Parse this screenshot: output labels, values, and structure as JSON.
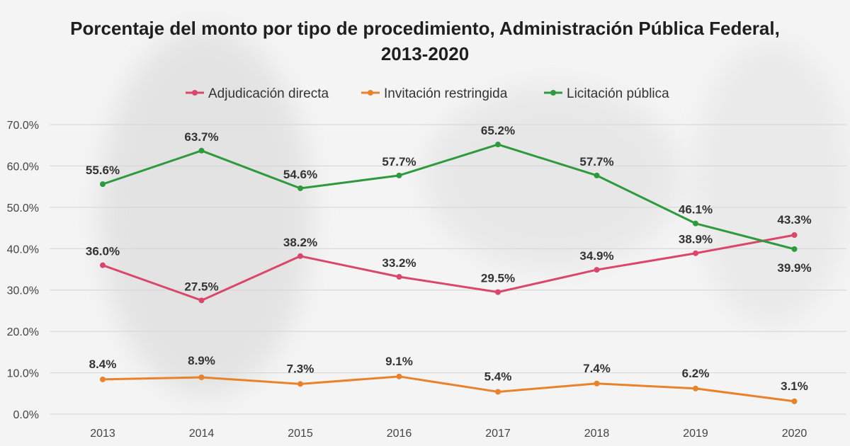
{
  "chart_data": {
    "type": "line",
    "title_lines": [
      "Porcentaje del monto por tipo de procedimiento, Administración Pública Federal,",
      "2013-2020"
    ],
    "categories": [
      "2013",
      "2014",
      "2015",
      "2016",
      "2017",
      "2018",
      "2019",
      "2020"
    ],
    "series": [
      {
        "name": "Adjudicación directa",
        "color": "#d9476b",
        "values": [
          36.0,
          27.5,
          38.2,
          33.2,
          29.5,
          34.9,
          38.9,
          43.3
        ]
      },
      {
        "name": "Invitación restringida",
        "color": "#e8822b",
        "values": [
          8.4,
          8.9,
          7.3,
          9.1,
          5.4,
          7.4,
          6.2,
          3.1
        ]
      },
      {
        "name": "Licitación pública",
        "color": "#2e9a3e",
        "values": [
          55.6,
          63.7,
          54.6,
          57.7,
          65.2,
          57.7,
          46.1,
          39.9
        ]
      }
    ],
    "ylim": [
      0,
      70
    ],
    "yticks": [
      "0.0%",
      "10.0%",
      "20.0%",
      "30.0%",
      "40.0%",
      "50.0%",
      "60.0%",
      "70.0%"
    ],
    "value_suffix": "%",
    "legend_position": "top-center",
    "grid": true
  }
}
